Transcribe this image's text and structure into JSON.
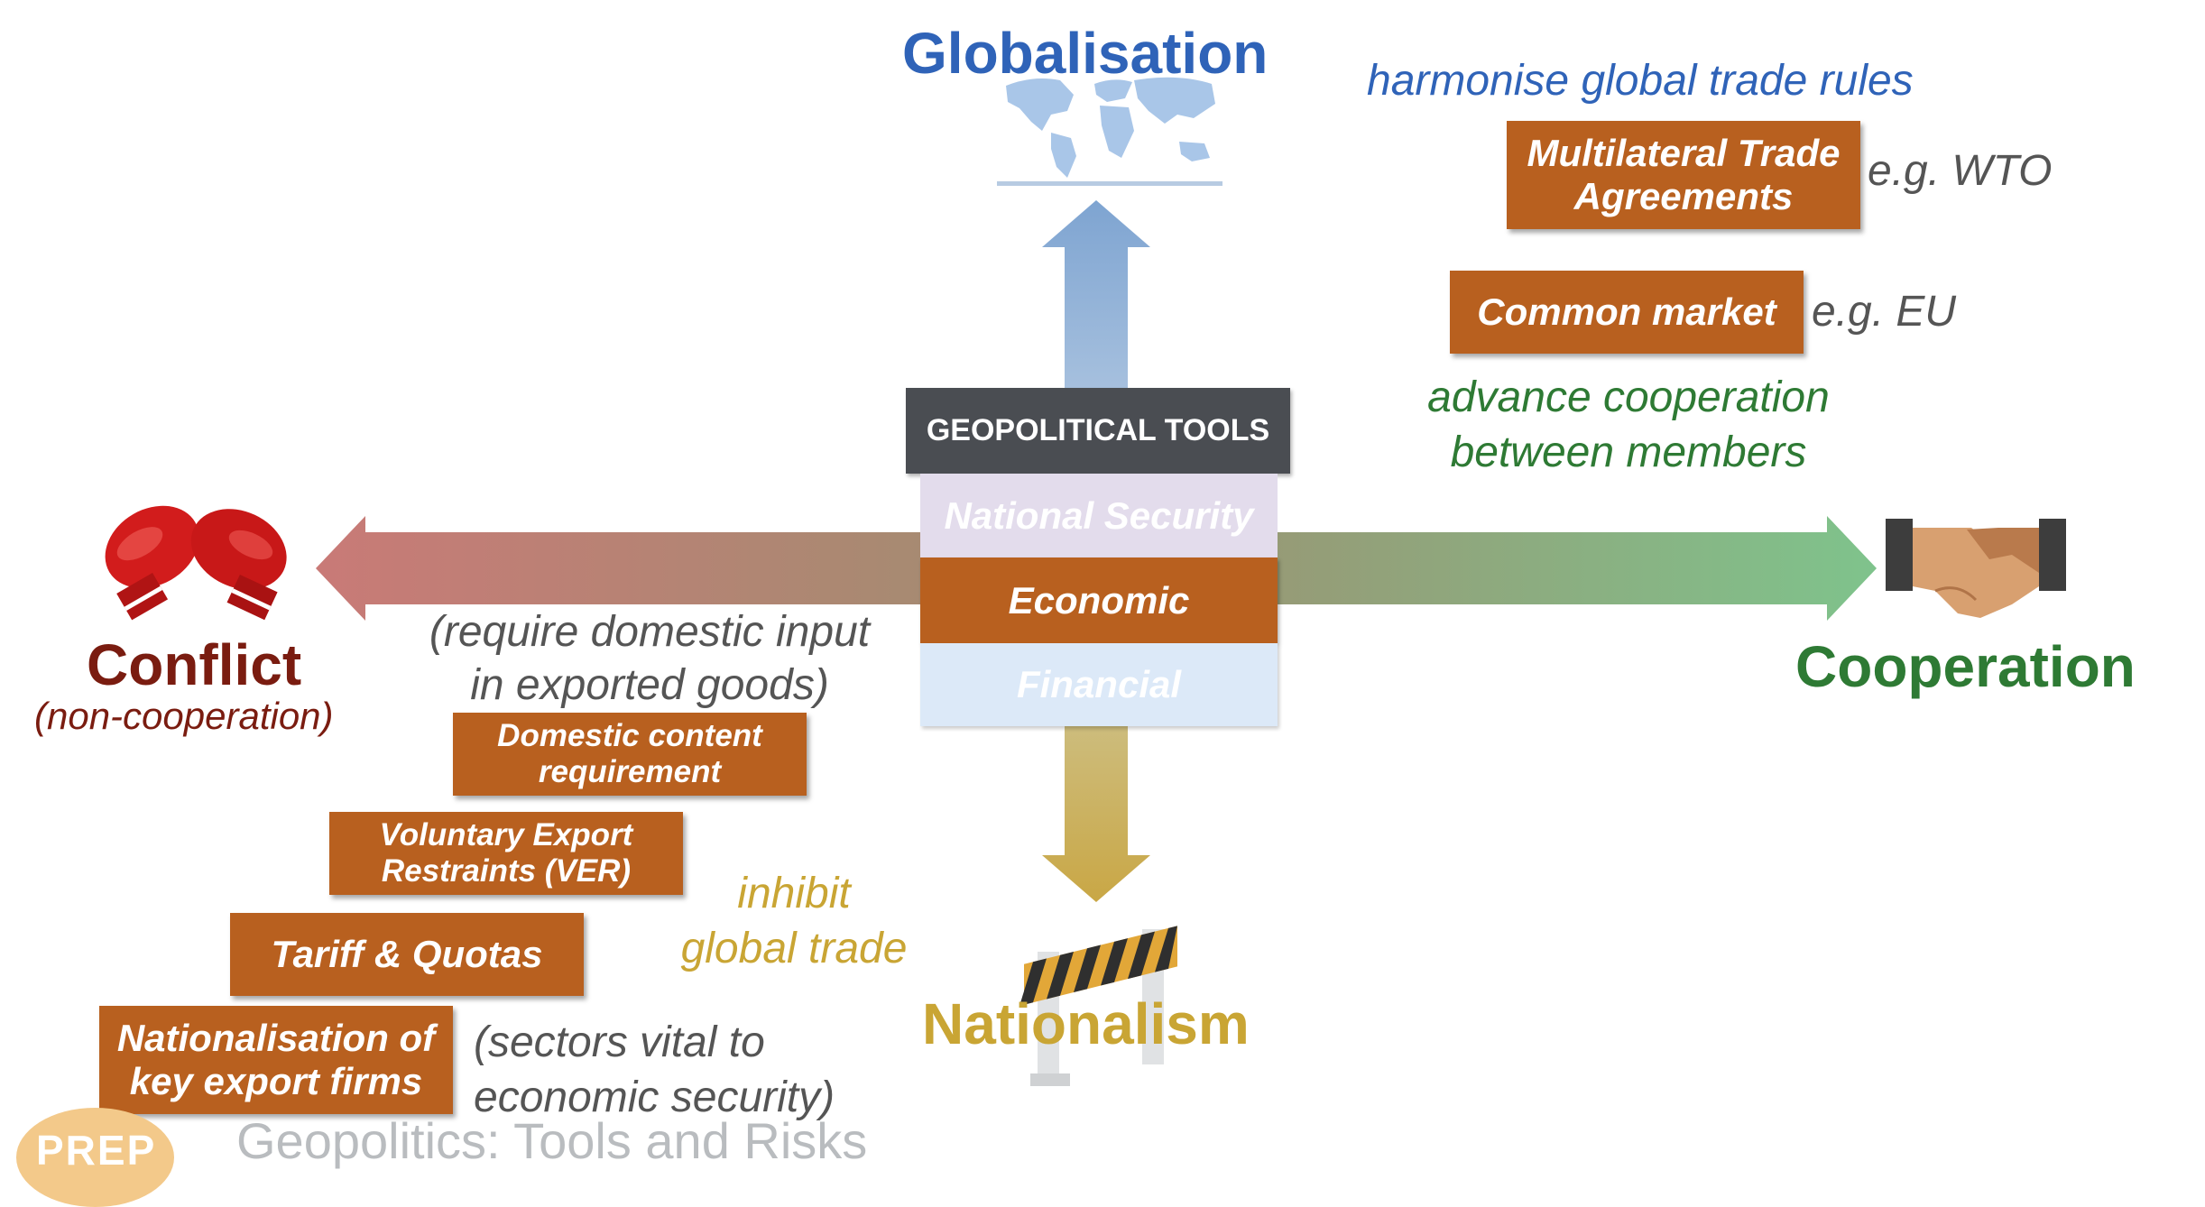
{
  "axes": {
    "top": "Globalisation",
    "bottom": "Nationalism",
    "left": "Conflict",
    "left_sub": "(non-cooperation)",
    "right": "Cooperation"
  },
  "center": {
    "header": "GEOPOLITICAL TOOLS",
    "tools": [
      "National Security",
      "Economic",
      "Financial"
    ]
  },
  "cooperation": {
    "note1": "harmonise global trade rules",
    "box1": [
      "Multilateral Trade",
      "Agreements"
    ],
    "eg1": "e.g. WTO",
    "box2": "Common market",
    "eg2": "e.g. EU",
    "note2": [
      "advance cooperation",
      "between members"
    ]
  },
  "conflict": {
    "note_top": [
      "(require domestic input",
      "in exported goods)"
    ],
    "box1": [
      "Domestic content",
      "requirement"
    ],
    "box2": [
      "Voluntary Export",
      "Restraints (VER)"
    ],
    "box3": "Tariff & Quotas",
    "box4": [
      "Nationalisation of",
      "key export firms"
    ],
    "note_bottom": [
      "(sectors vital to",
      "economic security)"
    ],
    "inhibit": [
      "inhibit",
      "global trade"
    ]
  },
  "footer": {
    "logo": "PREP",
    "title": "Geopolitics: Tools and Risks"
  },
  "colors": {
    "globalisation": "#2f63b8",
    "nationalism": "#c9a534",
    "conflict": "#7a1c10",
    "cooperation": "#2e7a34",
    "box": "#b8601f",
    "header": "#4a4d52"
  },
  "icons": [
    "world-map-icon",
    "boxing-gloves-icon",
    "handshake-icon",
    "road-barrier-icon",
    "prep-logo-icon"
  ]
}
